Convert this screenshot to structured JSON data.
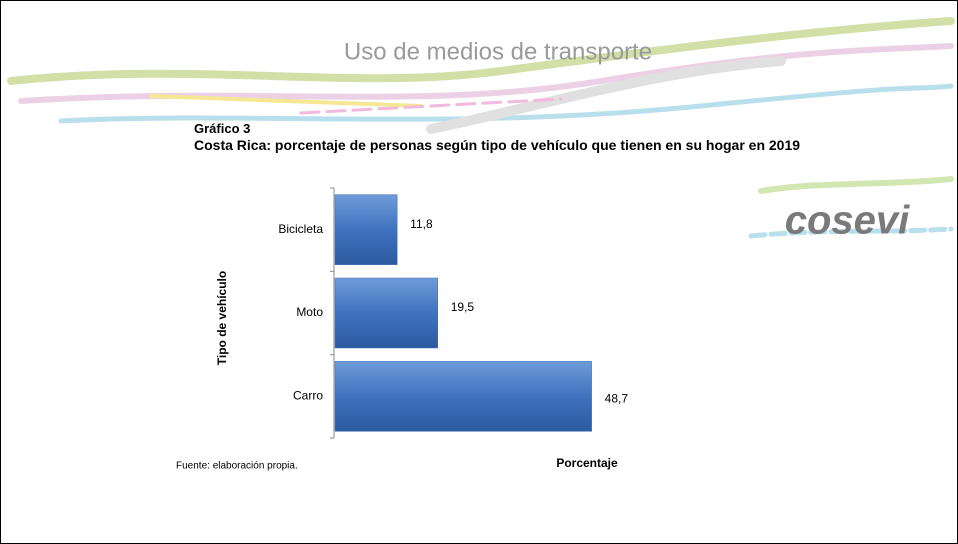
{
  "slide_title": "Uso de medios de transporte",
  "logo": "cosevi",
  "chart_data": {
    "type": "barh",
    "figure_label": "Gráfico 3",
    "title": "Costa Rica: porcentaje de personas según tipo de vehículo que tienen en su hogar en 2019",
    "y_label": "Tipo de vehículo",
    "x_label": "Porcentaje",
    "source": "Fuente: elaboración propia.",
    "categories": [
      "Bicicleta",
      "Moto",
      "Carro"
    ],
    "values": [
      11.8,
      19.5,
      48.7
    ],
    "value_labels": [
      "11,8",
      "19,5",
      "48,7"
    ],
    "color": "#3f72bf"
  }
}
